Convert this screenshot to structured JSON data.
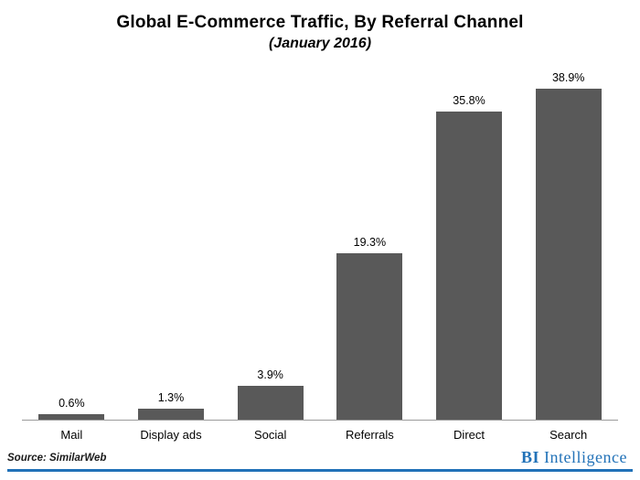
{
  "title": "Global E-Commerce Traffic, By Referral Channel",
  "subtitle": "(January 2016)",
  "footer": {
    "source": "Source: SimilarWeb",
    "brand_bold": "BI",
    "brand_rest": "Intelligence"
  },
  "colors": {
    "bar": "#595959",
    "brand_blue": "#2272b8",
    "axis": "#9b9b9b"
  },
  "chart_data": {
    "type": "bar",
    "title": "Global E-Commerce Traffic, By Referral Channel",
    "subtitle": "(January 2016)",
    "categories": [
      "Mail",
      "Display ads",
      "Social",
      "Referrals",
      "Direct",
      "Search"
    ],
    "values": [
      0.6,
      1.3,
      3.9,
      19.3,
      35.8,
      38.9
    ],
    "value_labels": [
      "0.6%",
      "1.3%",
      "3.9%",
      "19.3%",
      "35.8%",
      "38.9%"
    ],
    "xlabel": "",
    "ylabel": "",
    "ylim": [
      0,
      40.5
    ],
    "grid": false,
    "legend": false,
    "bar_color": "#595959"
  }
}
